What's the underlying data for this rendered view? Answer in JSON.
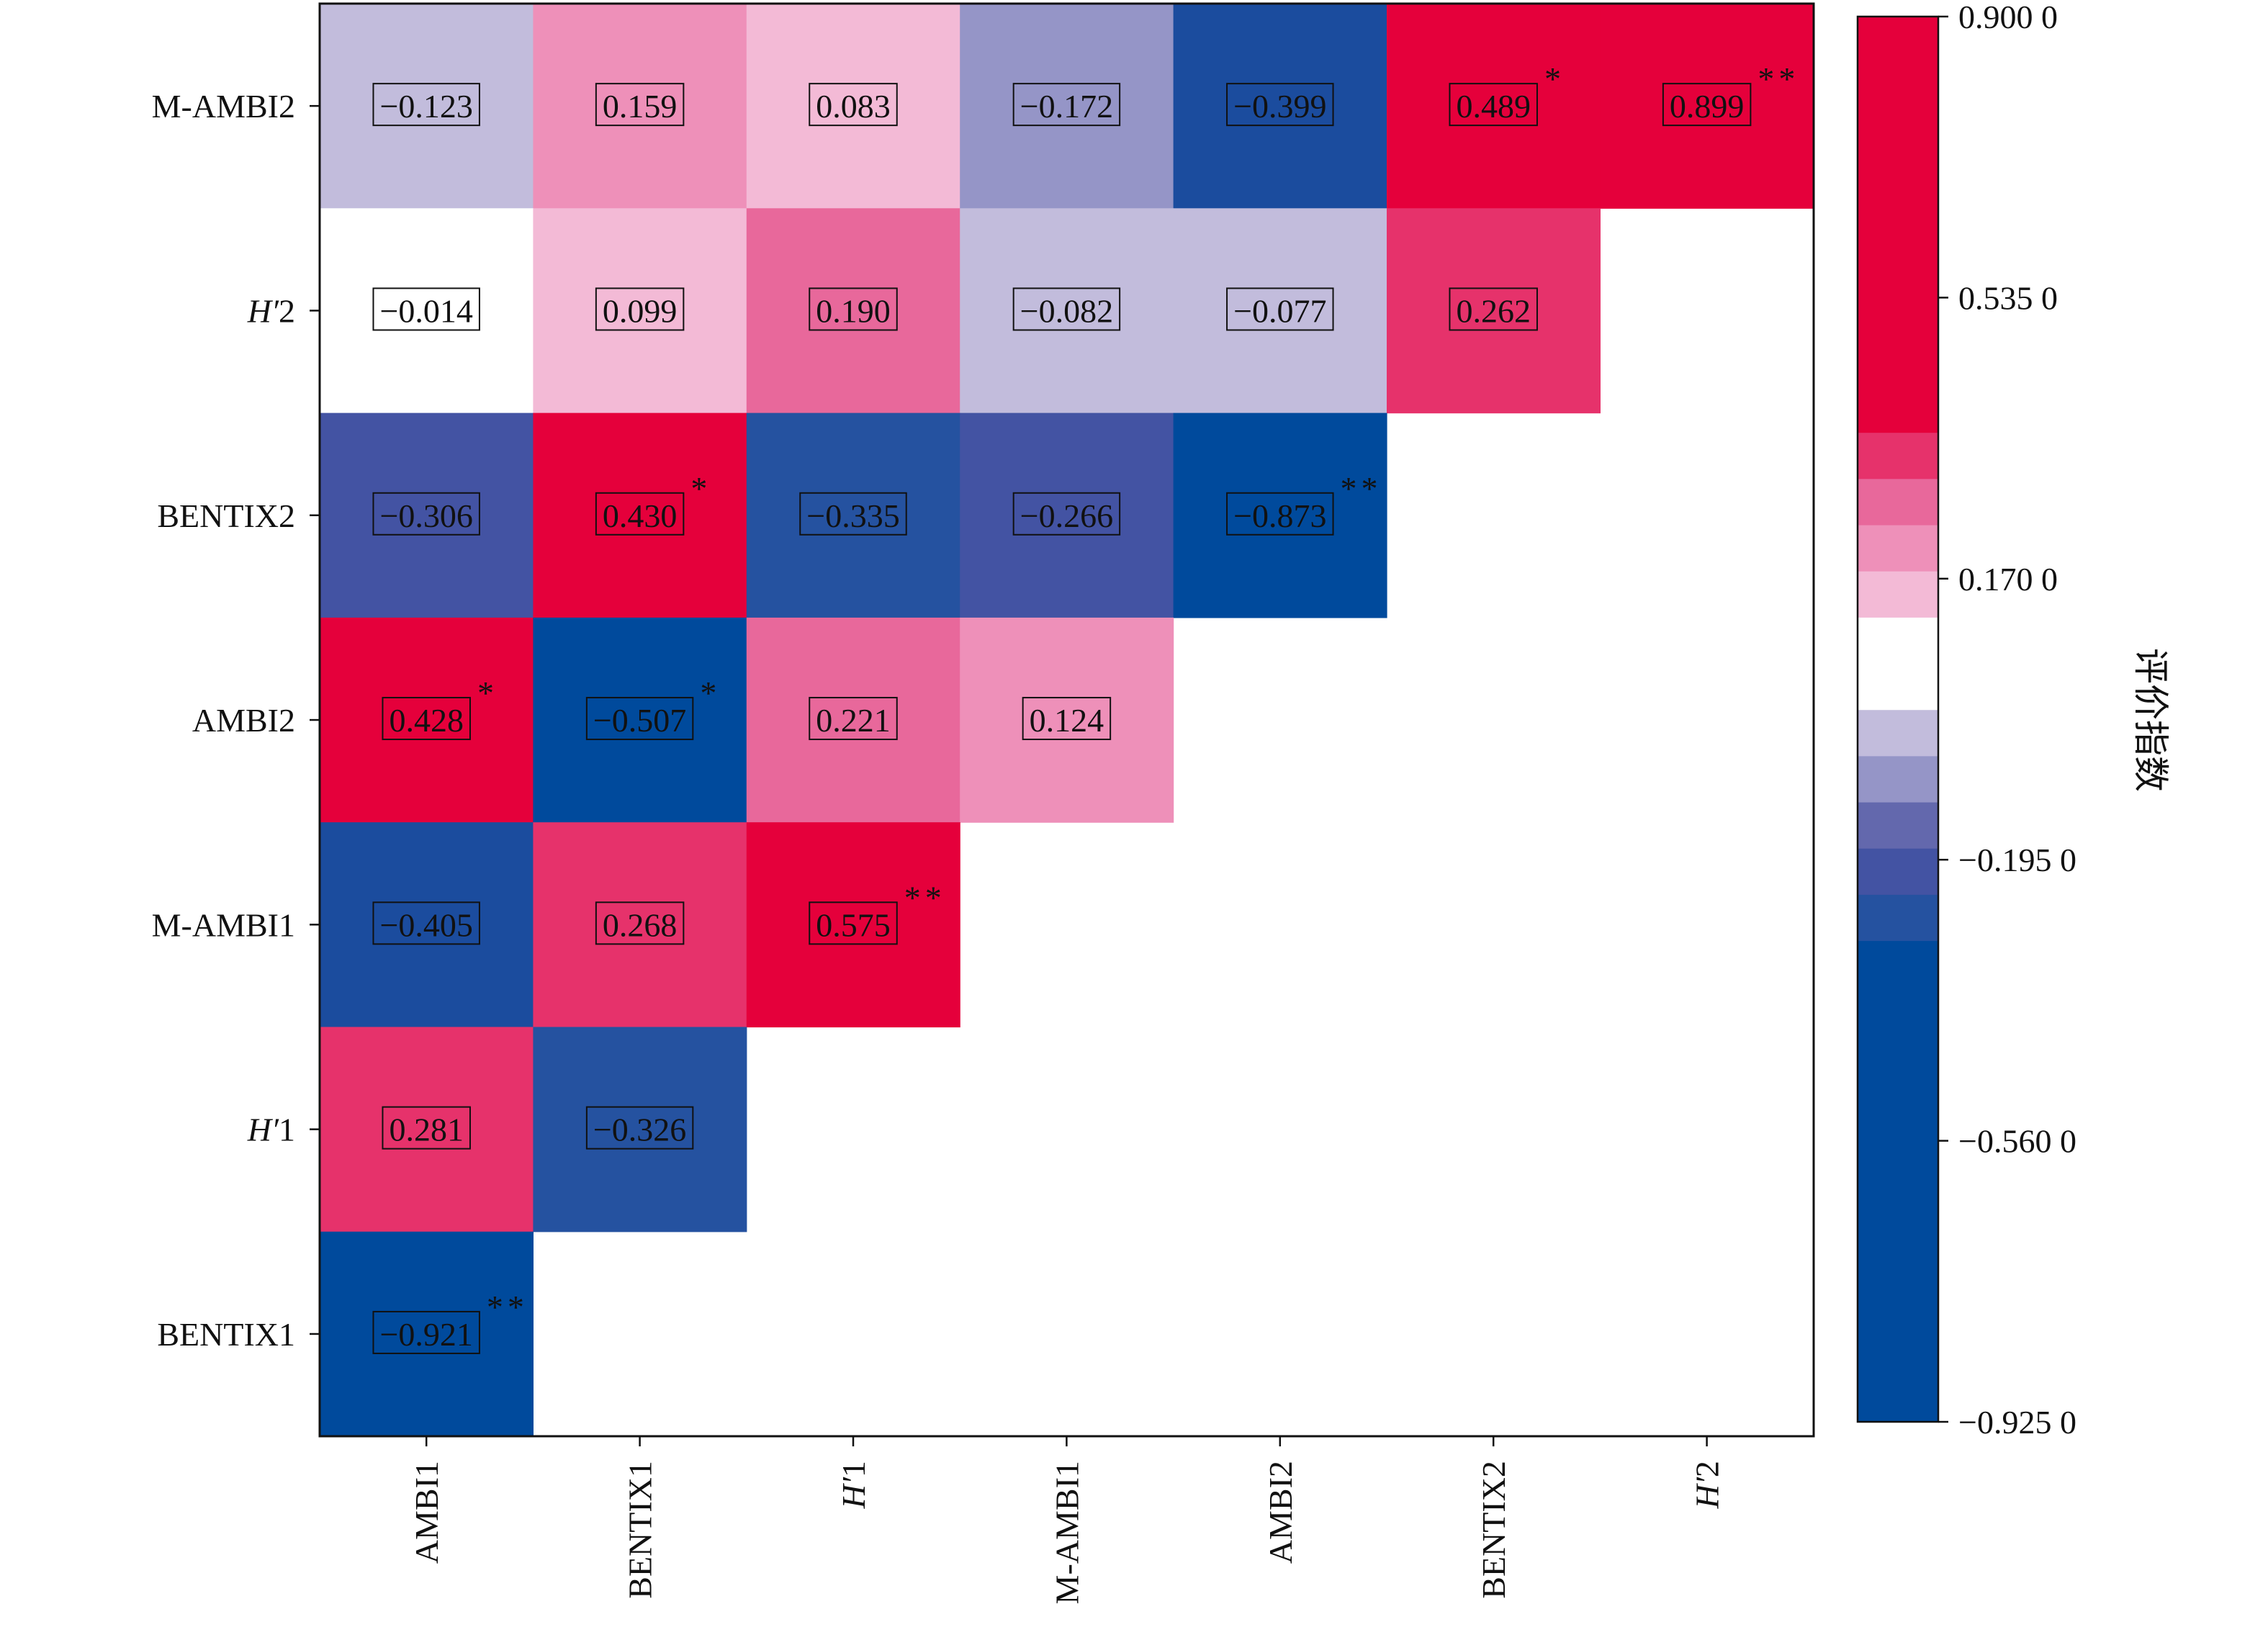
{
  "chart_data": {
    "type": "heatmap",
    "x_categories": [
      "AMBI1",
      "BENTIX1",
      "H'1",
      "M-AMBI1",
      "AMBI2",
      "BENTIX2",
      "H'2"
    ],
    "y_categories": [
      "M-AMBI2",
      "H'2",
      "BENTIX2",
      "AMBI2",
      "M-AMBI1",
      "H'1",
      "BENTIX1"
    ],
    "cells": [
      {
        "row": "M-AMBI2",
        "col": "AMBI1",
        "value": -0.123,
        "label": "−0.123",
        "sig": ""
      },
      {
        "row": "M-AMBI2",
        "col": "BENTIX1",
        "value": 0.159,
        "label": "0.159",
        "sig": ""
      },
      {
        "row": "M-AMBI2",
        "col": "H'1",
        "value": 0.083,
        "label": "0.083",
        "sig": ""
      },
      {
        "row": "M-AMBI2",
        "col": "M-AMBI1",
        "value": -0.172,
        "label": "−0.172",
        "sig": ""
      },
      {
        "row": "M-AMBI2",
        "col": "AMBI2",
        "value": -0.399,
        "label": "−0.399",
        "sig": ""
      },
      {
        "row": "M-AMBI2",
        "col": "BENTIX2",
        "value": 0.489,
        "label": "0.489",
        "sig": "*"
      },
      {
        "row": "M-AMBI2",
        "col": "H'2",
        "value": 0.899,
        "label": "0.899",
        "sig": "**"
      },
      {
        "row": "H'2",
        "col": "AMBI1",
        "value": -0.014,
        "label": "−0.014",
        "sig": ""
      },
      {
        "row": "H'2",
        "col": "BENTIX1",
        "value": 0.099,
        "label": "0.099",
        "sig": ""
      },
      {
        "row": "H'2",
        "col": "H'1",
        "value": 0.19,
        "label": "0.190",
        "sig": ""
      },
      {
        "row": "H'2",
        "col": "M-AMBI1",
        "value": -0.082,
        "label": "−0.082",
        "sig": ""
      },
      {
        "row": "H'2",
        "col": "AMBI2",
        "value": -0.077,
        "label": "−0.077",
        "sig": ""
      },
      {
        "row": "H'2",
        "col": "BENTIX2",
        "value": 0.262,
        "label": "0.262",
        "sig": ""
      },
      {
        "row": "BENTIX2",
        "col": "AMBI1",
        "value": -0.306,
        "label": "−0.306",
        "sig": ""
      },
      {
        "row": "BENTIX2",
        "col": "BENTIX1",
        "value": 0.43,
        "label": "0.430",
        "sig": "*"
      },
      {
        "row": "BENTIX2",
        "col": "H'1",
        "value": -0.335,
        "label": "−0.335",
        "sig": ""
      },
      {
        "row": "BENTIX2",
        "col": "M-AMBI1",
        "value": -0.266,
        "label": "−0.266",
        "sig": ""
      },
      {
        "row": "BENTIX2",
        "col": "AMBI2",
        "value": -0.873,
        "label": "−0.873",
        "sig": "**"
      },
      {
        "row": "AMBI2",
        "col": "AMBI1",
        "value": 0.428,
        "label": "0.428",
        "sig": "*"
      },
      {
        "row": "AMBI2",
        "col": "BENTIX1",
        "value": -0.507,
        "label": "−0.507",
        "sig": "*"
      },
      {
        "row": "AMBI2",
        "col": "H'1",
        "value": 0.221,
        "label": "0.221",
        "sig": ""
      },
      {
        "row": "AMBI2",
        "col": "M-AMBI1",
        "value": 0.124,
        "label": "0.124",
        "sig": ""
      },
      {
        "row": "M-AMBI1",
        "col": "AMBI1",
        "value": -0.405,
        "label": "−0.405",
        "sig": ""
      },
      {
        "row": "M-AMBI1",
        "col": "BENTIX1",
        "value": 0.268,
        "label": "0.268",
        "sig": ""
      },
      {
        "row": "M-AMBI1",
        "col": "H'1",
        "value": 0.575,
        "label": "0.575",
        "sig": "**"
      },
      {
        "row": "H'1",
        "col": "AMBI1",
        "value": 0.281,
        "label": "0.281",
        "sig": ""
      },
      {
        "row": "H'1",
        "col": "BENTIX1",
        "value": -0.326,
        "label": "−0.326",
        "sig": ""
      },
      {
        "row": "BENTIX1",
        "col": "AMBI1",
        "value": -0.921,
        "label": "−0.921",
        "sig": "**"
      }
    ],
    "colorbar": {
      "title": "评价指数",
      "range": [
        -0.925,
        0.9
      ],
      "ticks": [
        {
          "value": 0.9,
          "label": "0.900 0"
        },
        {
          "value": 0.535,
          "label": "0.535 0"
        },
        {
          "value": 0.17,
          "label": "0.170 0"
        },
        {
          "value": -0.195,
          "label": "−0.195 0"
        },
        {
          "value": -0.56,
          "label": "−0.560 0"
        },
        {
          "value": -0.925,
          "label": "−0.925 0"
        }
      ],
      "bands": [
        {
          "from": -0.925,
          "to": -0.3,
          "color": "#004a9c"
        },
        {
          "from": -0.3,
          "to": -0.24,
          "color": "#2552a0"
        },
        {
          "from": -0.24,
          "to": -0.18,
          "color": "#4353a3"
        },
        {
          "from": -0.18,
          "to": -0.12,
          "color": "#6368ad"
        },
        {
          "from": -0.12,
          "to": -0.06,
          "color": "#9595c7"
        },
        {
          "from": -0.06,
          "to": 0.0,
          "color": "#c2bcdc"
        },
        {
          "from": 0.0,
          "to": 0.12,
          "color": "#ffffff"
        },
        {
          "from": 0.12,
          "to": 0.18,
          "color": "#f3bad6"
        },
        {
          "from": 0.18,
          "to": 0.24,
          "color": "#ee90b9"
        },
        {
          "from": 0.24,
          "to": 0.3,
          "color": "#e8689b"
        },
        {
          "from": 0.3,
          "to": 0.36,
          "color": "#e6326b"
        },
        {
          "from": 0.36,
          "to": 0.9,
          "color": "#e5003b"
        }
      ]
    },
    "cell_colors": {
      "M-AMBI2|AMBI1": "#c2bcdc",
      "M-AMBI2|BENTIX1": "#ee90b9",
      "M-AMBI2|H'1": "#f3bad6",
      "M-AMBI2|M-AMBI1": "#9595c7",
      "M-AMBI2|AMBI2": "#1b4c9e",
      "M-AMBI2|BENTIX2": "#e5003b",
      "M-AMBI2|H'2": "#e5003b",
      "H'2|AMBI1": "#ffffff",
      "H'2|BENTIX1": "#f3bad6",
      "H'2|H'1": "#e8689b",
      "H'2|M-AMBI1": "#c2bcdc",
      "H'2|AMBI2": "#c2bcdc",
      "H'2|BENTIX2": "#e6326b",
      "BENTIX2|AMBI1": "#4353a3",
      "BENTIX2|BENTIX1": "#e5003b",
      "BENTIX2|H'1": "#2552a0",
      "BENTIX2|M-AMBI1": "#4353a3",
      "BENTIX2|AMBI2": "#004a9c",
      "AMBI2|AMBI1": "#e5003b",
      "AMBI2|BENTIX1": "#004a9c",
      "AMBI2|H'1": "#e8689b",
      "AMBI2|M-AMBI1": "#ee90b9",
      "M-AMBI1|AMBI1": "#1b4c9e",
      "M-AMBI1|BENTIX1": "#e6326b",
      "M-AMBI1|H'1": "#e5003b",
      "H'1|AMBI1": "#e6326b",
      "H'1|BENTIX1": "#2552a0",
      "BENTIX1|AMBI1": "#004a9c"
    }
  }
}
